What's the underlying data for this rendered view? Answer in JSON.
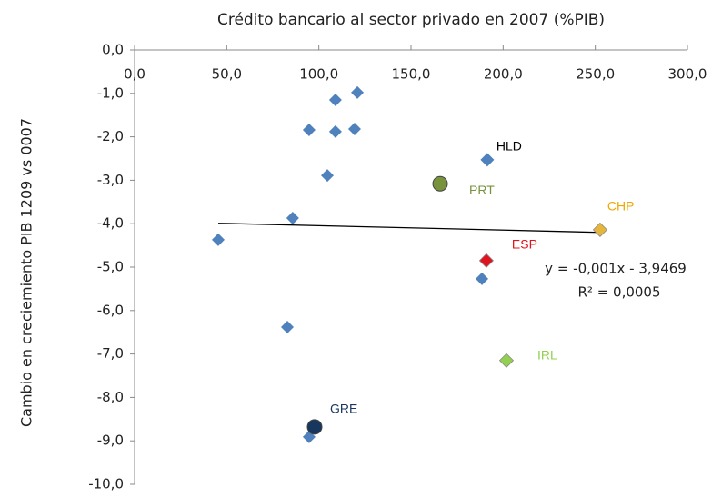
{
  "chart_data": {
    "type": "scatter",
    "title": "Crédito bancario al sector privado en 2007 (%PIB)",
    "y_label": "Cambio en creciemiento PIB 1209 vs 0007",
    "x": [
      45.4,
      85.8,
      82.9,
      94.7,
      104.6,
      109,
      109,
      120.9,
      119.4,
      94.7,
      188.5
    ],
    "y": [
      -4.37,
      -3.87,
      -6.38,
      -1.84,
      -2.89,
      -1.15,
      -1.88,
      -0.98,
      -1.82,
      -8.91,
      -5.27
    ],
    "color": "#4f81bd",
    "marker": "diamond",
    "points": [
      {
        "label": "HLD",
        "x": 191.4,
        "y": -2.53,
        "color": "#4f81bd",
        "label_color": "#000000",
        "marker": "diamond"
      },
      {
        "label": "PRT",
        "x": 165.8,
        "y": -3.08,
        "color": "#77933c",
        "label_color": "#77933c",
        "marker": "circle"
      },
      {
        "label": "CHP",
        "x": 252.6,
        "y": -4.14,
        "color": "#e6b53c",
        "label_color": "#f0a800",
        "marker": "diamond"
      },
      {
        "label": "ESP",
        "x": 190.9,
        "y": -4.85,
        "color": "#e0141e",
        "label_color": "#e0141e",
        "marker": "diamond"
      },
      {
        "label": "IRL",
        "x": 201.8,
        "y": -7.15,
        "color": "#92d050",
        "label_color": "#92d050",
        "marker": "diamond"
      },
      {
        "label": "GRE",
        "x": 97.7,
        "y": -8.68,
        "color": "#17375e",
        "label_color": "#17375e",
        "marker": "circle"
      }
    ],
    "trendline": {
      "x": [
        45.4,
        252.6
      ],
      "y": [
        -3.99,
        -4.2
      ],
      "color": "#000000"
    },
    "equation": "y = -0,001x - 3,9469",
    "r_squared": "R² = 0,0005",
    "xlim": [
      0,
      300
    ],
    "ylim": [
      -10,
      0
    ],
    "xticks": [
      {
        "value": 0,
        "label": "0,0"
      },
      {
        "value": 50,
        "label": "50,0"
      },
      {
        "value": 100,
        "label": "100,0"
      },
      {
        "value": 150,
        "label": "150,0"
      },
      {
        "value": 200,
        "label": "200,0"
      },
      {
        "value": 250,
        "label": "250,0"
      },
      {
        "value": 300,
        "label": "300,0"
      }
    ],
    "yticks": [
      {
        "value": 0,
        "label": "0,0"
      },
      {
        "value": -1,
        "label": "-1,0"
      },
      {
        "value": -2,
        "label": "-2,0"
      },
      {
        "value": -3,
        "label": "-3,0"
      },
      {
        "value": -4,
        "label": "-4,0"
      },
      {
        "value": -5,
        "label": "-5,0"
      },
      {
        "value": -6,
        "label": "-6,0"
      },
      {
        "value": -7,
        "label": "-7,0"
      },
      {
        "value": -8,
        "label": "-8,0"
      },
      {
        "value": -9,
        "label": "-9,0"
      },
      {
        "value": -10,
        "label": "-10,0"
      }
    ]
  }
}
